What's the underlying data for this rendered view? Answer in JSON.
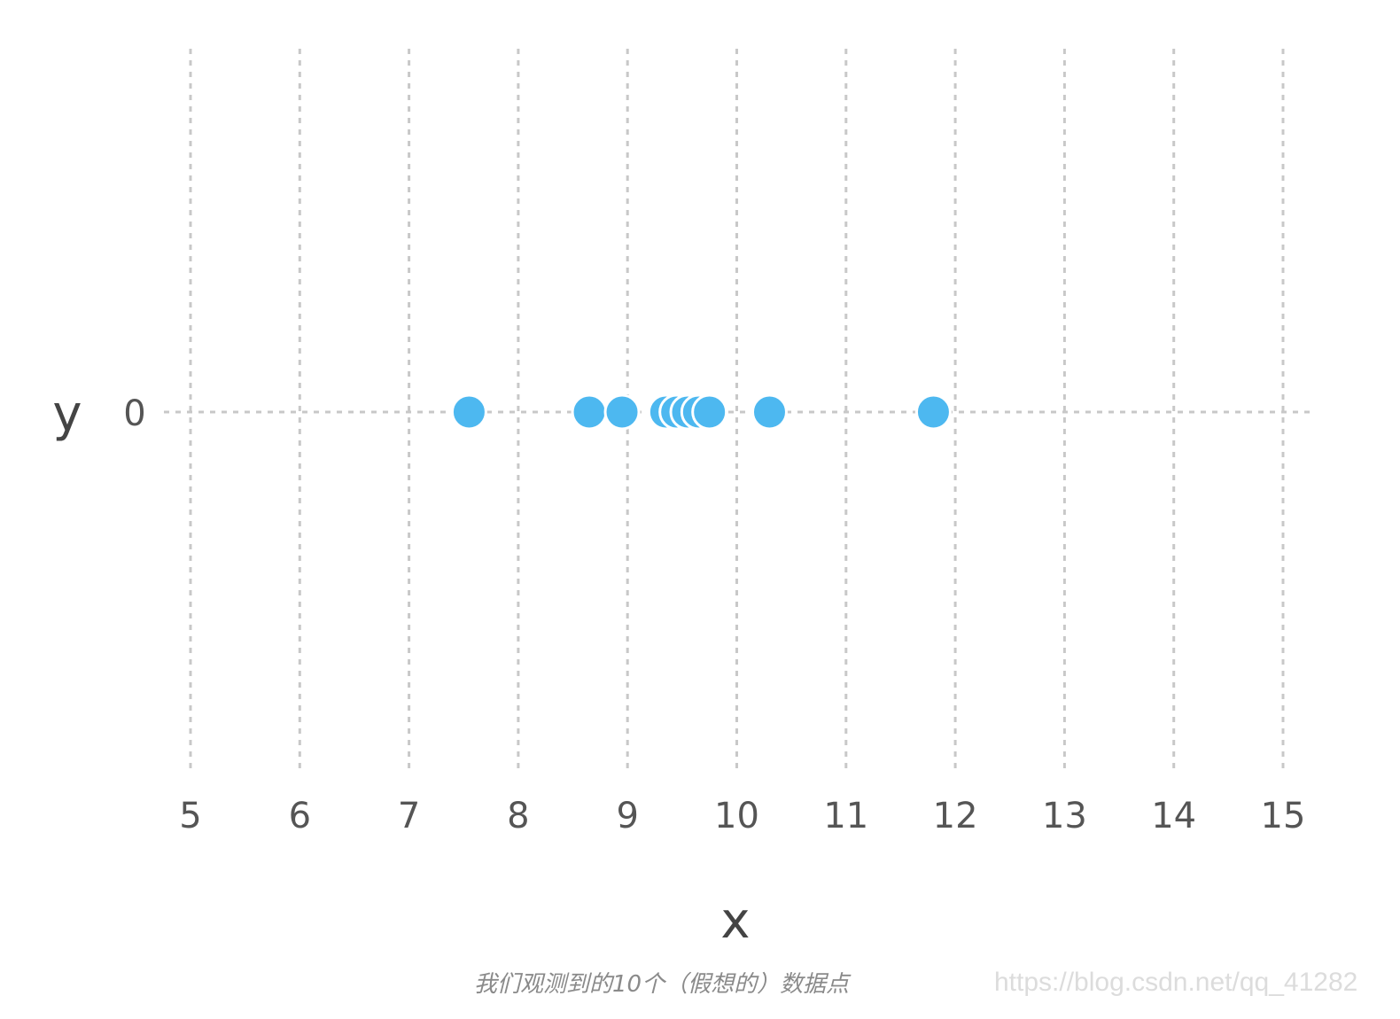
{
  "chart_data": {
    "type": "scatter",
    "title": "",
    "xlabel": "x",
    "ylabel": "y",
    "xlim": [
      5,
      15
    ],
    "x_ticks": [
      "5",
      "6",
      "7",
      "8",
      "9",
      "10",
      "11",
      "12",
      "13",
      "14",
      "15"
    ],
    "y_ticks": [
      "0"
    ],
    "grid": true,
    "series": [
      {
        "color": "#4db8f0",
        "x": [
          7.55,
          8.65,
          8.95,
          9.35,
          9.45,
          9.55,
          9.65,
          9.75,
          10.3,
          11.8
        ],
        "y": [
          0,
          0,
          0,
          0,
          0,
          0,
          0,
          0,
          0,
          0
        ]
      }
    ]
  },
  "caption": "我们观测到的10个（假想的）数据点",
  "watermark": "https://blog.csdn.net/qq_41282"
}
